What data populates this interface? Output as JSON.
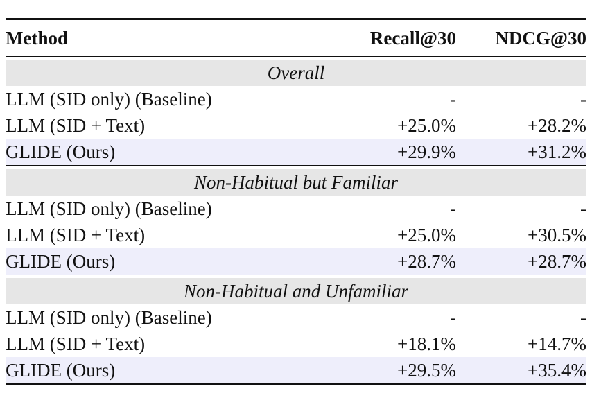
{
  "header": {
    "method": "Method",
    "recall": "Recall@30",
    "ndcg": "NDCG@30"
  },
  "sections": [
    {
      "title": "Overall",
      "rows": [
        {
          "method": "LLM (SID only) (Baseline)",
          "recall": "-",
          "ndcg": "-"
        },
        {
          "method": "LLM (SID + Text)",
          "recall": "+25.0%",
          "ndcg": "+28.2%"
        },
        {
          "method": "GLIDE (Ours)",
          "recall": "+29.9%",
          "ndcg": "+31.2%"
        }
      ]
    },
    {
      "title": "Non-Habitual but Familiar",
      "rows": [
        {
          "method": "LLM (SID only) (Baseline)",
          "recall": "-",
          "ndcg": "-"
        },
        {
          "method": "LLM (SID + Text)",
          "recall": "+25.0%",
          "ndcg": "+30.5%"
        },
        {
          "method": "GLIDE (Ours)",
          "recall": "+28.7%",
          "ndcg": "+28.7%"
        }
      ]
    },
    {
      "title": "Non-Habitual and Unfamiliar",
      "rows": [
        {
          "method": "LLM (SID only) (Baseline)",
          "recall": "-",
          "ndcg": "-"
        },
        {
          "method": "LLM (SID + Text)",
          "recall": "+18.1%",
          "ndcg": "+14.7%"
        },
        {
          "method": "GLIDE (Ours)",
          "recall": "+29.5%",
          "ndcg": "+35.4%"
        }
      ]
    }
  ],
  "colors": {
    "section_bg": "#e6e6e6",
    "highlight_bg": "#eeeefb",
    "rule": "#111111"
  }
}
